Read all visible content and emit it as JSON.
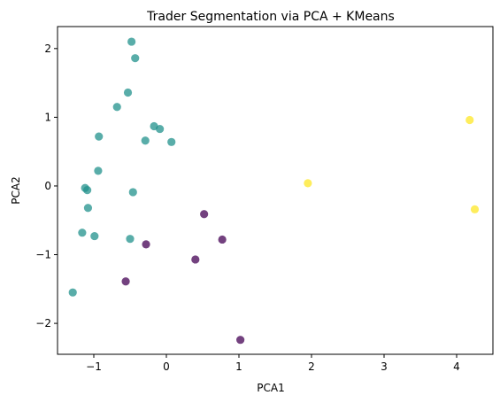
{
  "chart_data": {
    "type": "scatter",
    "title": "Trader Segmentation via PCA + KMeans",
    "xlabel": "PCA1",
    "ylabel": "PCA2",
    "xlim": [
      -1.5,
      4.5
    ],
    "ylim": [
      -2.45,
      2.32
    ],
    "x_ticks": [
      -1,
      0,
      1,
      2,
      3,
      4
    ],
    "y_ticks": [
      -2,
      -1,
      0,
      1,
      2
    ],
    "grid": false,
    "legend": "none",
    "series": [
      {
        "color": "#21918c",
        "points": [
          {
            "x": -0.48,
            "y": 2.1
          },
          {
            "x": -0.43,
            "y": 1.86
          },
          {
            "x": -0.53,
            "y": 1.36
          },
          {
            "x": -0.68,
            "y": 1.15
          },
          {
            "x": -0.17,
            "y": 0.87
          },
          {
            "x": -0.09,
            "y": 0.83
          },
          {
            "x": -0.93,
            "y": 0.72
          },
          {
            "x": -0.29,
            "y": 0.66
          },
          {
            "x": 0.07,
            "y": 0.64
          },
          {
            "x": -0.94,
            "y": 0.22
          },
          {
            "x": -1.12,
            "y": -0.03
          },
          {
            "x": -1.09,
            "y": -0.06
          },
          {
            "x": -0.46,
            "y": -0.09
          },
          {
            "x": -1.08,
            "y": -0.32
          },
          {
            "x": -1.16,
            "y": -0.68
          },
          {
            "x": -0.99,
            "y": -0.73
          },
          {
            "x": -0.5,
            "y": -0.77
          },
          {
            "x": -1.29,
            "y": -1.55
          }
        ]
      },
      {
        "color": "#440154",
        "points": [
          {
            "x": 0.52,
            "y": -0.41
          },
          {
            "x": 0.77,
            "y": -0.78
          },
          {
            "x": -0.28,
            "y": -0.85
          },
          {
            "x": 0.4,
            "y": -1.07
          },
          {
            "x": -0.56,
            "y": -1.39
          },
          {
            "x": 1.02,
            "y": -2.24
          }
        ]
      },
      {
        "color": "#fde725",
        "points": [
          {
            "x": 4.18,
            "y": 0.96
          },
          {
            "x": 1.95,
            "y": 0.04
          },
          {
            "x": 4.25,
            "y": -0.34
          }
        ]
      }
    ]
  }
}
